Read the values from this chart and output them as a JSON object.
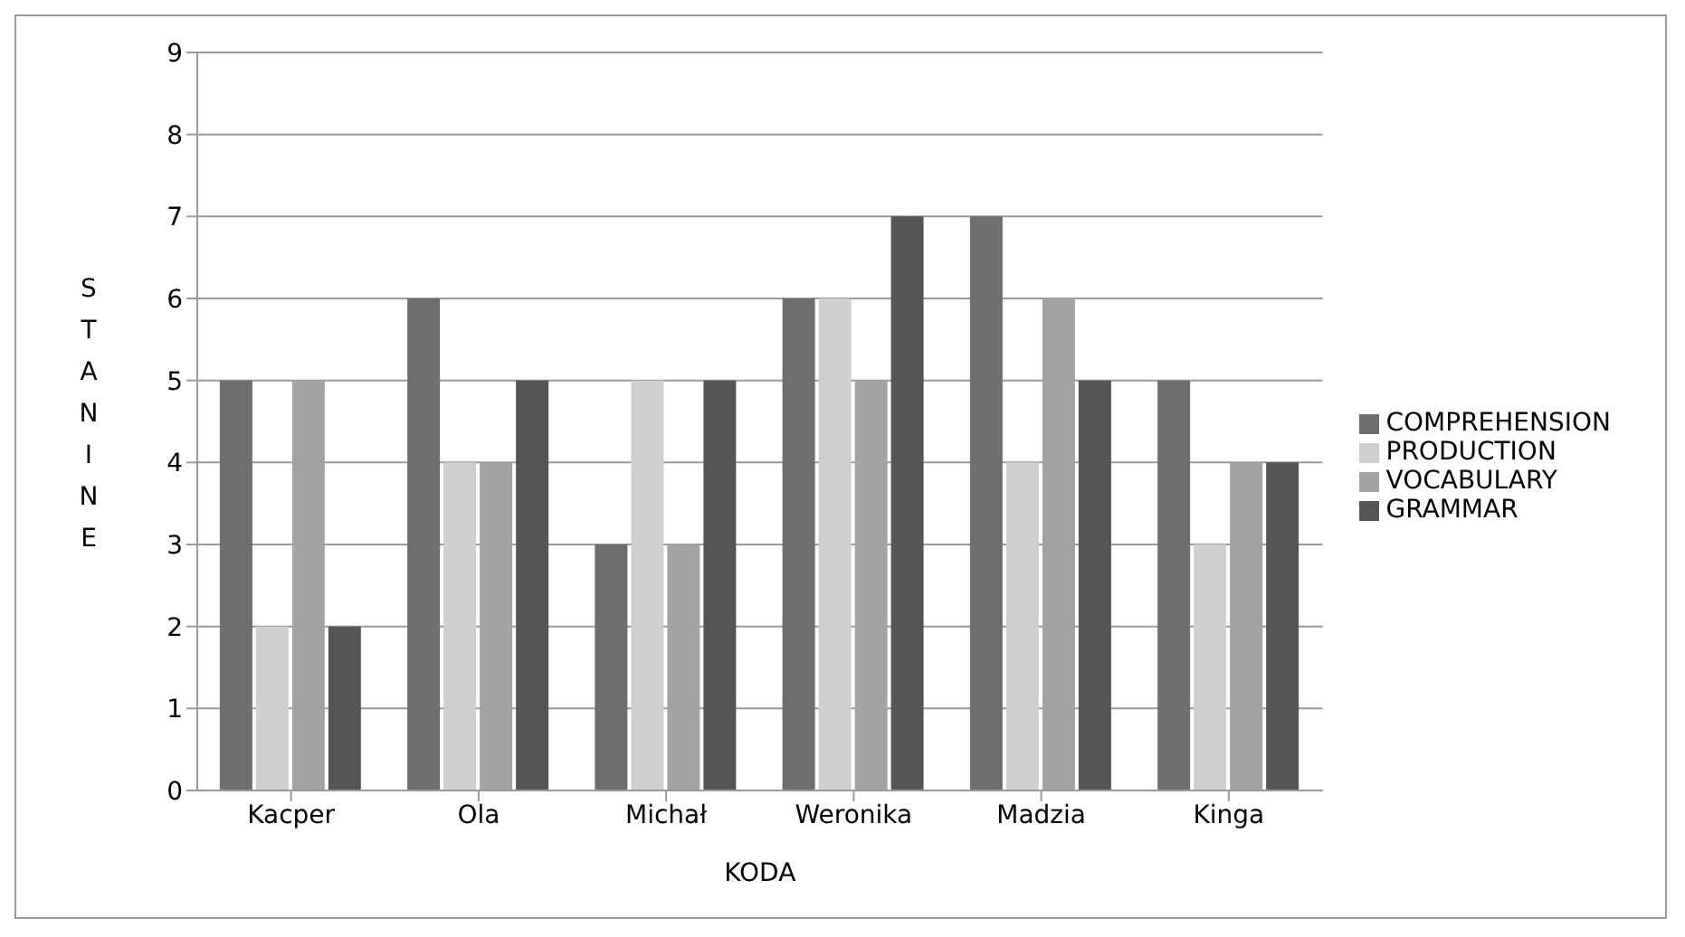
{
  "chart_data": {
    "type": "bar",
    "xlabel": "KODA",
    "ylabel": "STANINE",
    "categories": [
      "Kacper",
      "Ola",
      "Michał",
      "Weronika",
      "Madzia",
      "Kinga"
    ],
    "series": [
      {
        "name": "COMPREHENSION",
        "color": "#6e6e6e",
        "values": [
          5,
          6,
          3,
          6,
          7,
          5
        ]
      },
      {
        "name": "PRODUCTION",
        "color": "#cfcfcf",
        "values": [
          2,
          4,
          5,
          6,
          4,
          3
        ]
      },
      {
        "name": "VOCABULARY",
        "color": "#a3a3a3",
        "values": [
          5,
          4,
          3,
          5,
          6,
          4
        ]
      },
      {
        "name": "GRAMMAR",
        "color": "#555555",
        "values": [
          2,
          5,
          5,
          7,
          5,
          4
        ]
      }
    ],
    "ylim": [
      0,
      9
    ],
    "yticks": [
      0,
      1,
      2,
      3,
      4,
      5,
      6,
      7,
      8,
      9
    ],
    "grid": "y",
    "legend": "right"
  }
}
